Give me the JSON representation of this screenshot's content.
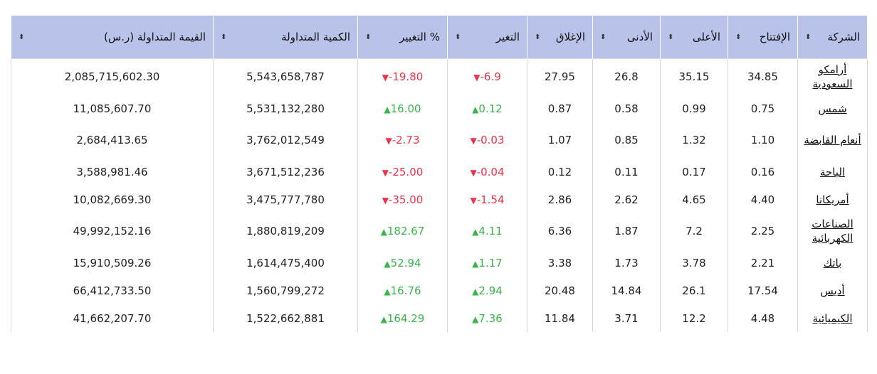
{
  "headers": [
    {
      "key": "company",
      "label": "الشركة"
    },
    {
      "key": "open",
      "label": "الإفتتاح"
    },
    {
      "key": "high",
      "label": "الأعلى"
    },
    {
      "key": "low",
      "label": "الأدنى"
    },
    {
      "key": "close",
      "label": "الإغلاق"
    },
    {
      "key": "change",
      "label": "التغير"
    },
    {
      "key": "pct",
      "label": "% التغيير"
    },
    {
      "key": "volume",
      "label": "الكمية المتداولة"
    },
    {
      "key": "value",
      "label": "القيمة المتداولة (ر.س)"
    }
  ],
  "sort_glyph": "⬍",
  "rows": [
    {
      "company": "أرامكو السعودية",
      "open": "34.85",
      "high": "35.15",
      "low": "26.8",
      "close": "27.95",
      "change": "6.9-",
      "change_dir": "down",
      "pct": "19.80-",
      "pct_dir": "down",
      "volume": "5,543,658,787",
      "value": "2,085,715,602.30",
      "tall": true
    },
    {
      "company": "شمس",
      "open": "0.75",
      "high": "0.99",
      "low": "0.58",
      "close": "0.87",
      "change": "0.12",
      "change_dir": "up",
      "pct": "16.00",
      "pct_dir": "up",
      "volume": "5,531,132,280",
      "value": "11,085,607.70",
      "tall": false
    },
    {
      "company": "أنعام القابضة",
      "open": "1.10",
      "high": "1.32",
      "low": "0.85",
      "close": "1.07",
      "change": "0.03-",
      "change_dir": "down",
      "pct": "2.73-",
      "pct_dir": "down",
      "volume": "3,762,012,549",
      "value": "2,684,413.65",
      "tall": true
    },
    {
      "company": "الباحة",
      "open": "0.16",
      "high": "0.17",
      "low": "0.11",
      "close": "0.12",
      "change": "0.04-",
      "change_dir": "down",
      "pct": "25.00-",
      "pct_dir": "down",
      "volume": "3,671,512,236",
      "value": "3,588,981.46",
      "tall": false
    },
    {
      "company": "أمريكانا",
      "open": "4.40",
      "high": "4.65",
      "low": "2.62",
      "close": "2.86",
      "change": "1.54-",
      "change_dir": "down",
      "pct": "35.00-",
      "pct_dir": "down",
      "volume": "3,475,777,780",
      "value": "10,082,669.30",
      "tall": false
    },
    {
      "company": "الصناعات الكهربائية",
      "open": "2.25",
      "high": "7.2",
      "low": "1.87",
      "close": "6.36",
      "change": "4.11",
      "change_dir": "up",
      "pct": "182.67",
      "pct_dir": "up",
      "volume": "1,880,819,209",
      "value": "49,992,152.16",
      "tall": true
    },
    {
      "company": "باتك",
      "open": "2.21",
      "high": "3.78",
      "low": "1.73",
      "close": "3.38",
      "change": "1.17",
      "change_dir": "up",
      "pct": "52.94",
      "pct_dir": "up",
      "volume": "1,614,475,400",
      "value": "15,910,509.26",
      "tall": false
    },
    {
      "company": "أديس",
      "open": "17.54",
      "high": "26.1",
      "low": "14.84",
      "close": "20.48",
      "change": "2.94",
      "change_dir": "up",
      "pct": "16.76",
      "pct_dir": "up",
      "volume": "1,560,799,272",
      "value": "66,412,733.50",
      "tall": false
    },
    {
      "company": "الكيميائية",
      "open": "4.48",
      "high": "12.2",
      "low": "3.71",
      "close": "11.84",
      "change": "7.36",
      "change_dir": "up",
      "pct": "164.29",
      "pct_dir": "up",
      "volume": "1,522,662,881",
      "value": "41,662,207.70",
      "tall": false
    }
  ],
  "colors": {
    "up": "#39b54a",
    "down": "#e8334a",
    "header_bg": "#b9c3ea"
  }
}
